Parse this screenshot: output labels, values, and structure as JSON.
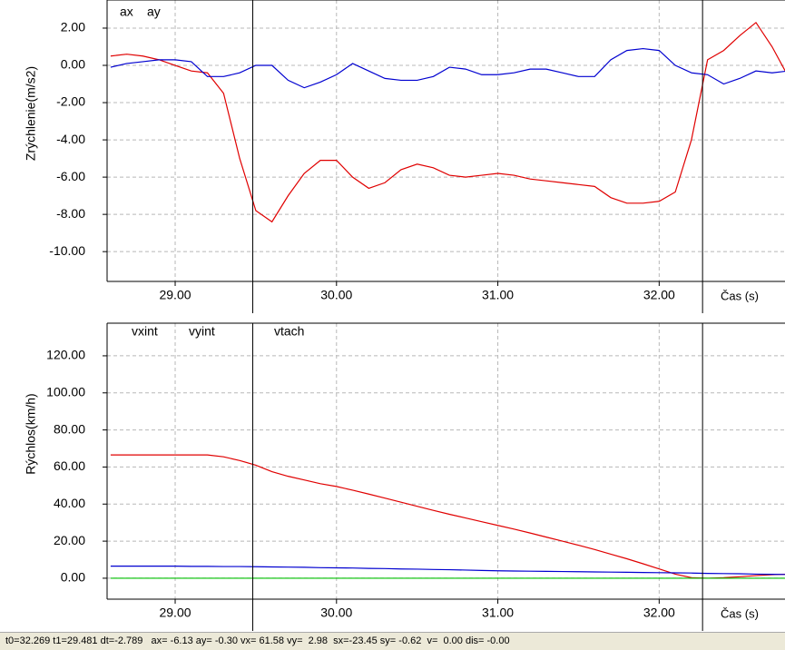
{
  "chart_data": [
    {
      "type": "line",
      "y_label": "Zrýchlenie(m/s2)",
      "x_label": "Čas (s)",
      "x": [
        28.6,
        28.7,
        28.8,
        28.9,
        29.0,
        29.1,
        29.2,
        29.3,
        29.4,
        29.5,
        29.6,
        29.7,
        29.8,
        29.9,
        30.0,
        30.1,
        30.2,
        30.3,
        30.4,
        30.5,
        30.6,
        30.7,
        30.8,
        30.9,
        31.0,
        31.1,
        31.2,
        31.3,
        31.4,
        31.5,
        31.6,
        31.7,
        31.8,
        31.9,
        32.0,
        32.1,
        32.2,
        32.3,
        32.4,
        32.5,
        32.6,
        32.7,
        32.8
      ],
      "series": [
        {
          "name": "ax",
          "color": "#e00000",
          "values": [
            0.5,
            0.6,
            0.5,
            0.3,
            0.0,
            -0.3,
            -0.4,
            -1.5,
            -5.0,
            -7.8,
            -8.4,
            -7.0,
            -5.8,
            -5.1,
            -5.1,
            -6.0,
            -6.6,
            -6.3,
            -5.6,
            -5.3,
            -5.5,
            -5.9,
            -6.0,
            -5.9,
            -5.8,
            -5.9,
            -6.1,
            -6.2,
            -6.3,
            -6.4,
            -6.5,
            -7.1,
            -7.4,
            -7.4,
            -7.3,
            -6.8,
            -4.0,
            0.3,
            0.8,
            1.6,
            2.3,
            1.0,
            -0.6
          ]
        },
        {
          "name": "ay",
          "color": "#0000d0",
          "values": [
            -0.1,
            0.1,
            0.2,
            0.3,
            0.3,
            0.2,
            -0.6,
            -0.6,
            -0.4,
            0.0,
            0.0,
            -0.8,
            -1.2,
            -0.9,
            -0.5,
            0.1,
            -0.3,
            -0.7,
            -0.8,
            -0.8,
            -0.6,
            -0.1,
            -0.2,
            -0.5,
            -0.5,
            -0.4,
            -0.2,
            -0.2,
            -0.4,
            -0.6,
            -0.6,
            0.3,
            0.8,
            0.9,
            0.8,
            0.0,
            -0.4,
            -0.5,
            -1.0,
            -0.7,
            -0.3,
            -0.4,
            -0.3
          ]
        }
      ],
      "xlim": [
        28.578,
        32.78
      ],
      "xticks": [
        {
          "value": 29,
          "label": "29.00"
        },
        {
          "value": 30,
          "label": "30.00"
        },
        {
          "value": 31,
          "label": "31.00"
        },
        {
          "value": 32,
          "label": "32.00"
        }
      ],
      "ylim": [
        -11.6,
        3.51
      ],
      "yticks": [
        {
          "value": 2,
          "label": "2.00"
        },
        {
          "value": 0,
          "label": "0.00"
        },
        {
          "value": -2,
          "label": "-2.00"
        },
        {
          "value": -4,
          "label": "-4.00"
        },
        {
          "value": -6,
          "label": "-6.00"
        },
        {
          "value": -8,
          "label": "-8.00"
        },
        {
          "value": -10,
          "label": "-10.00"
        }
      ],
      "cursors": [
        29.481,
        32.269
      ],
      "grid": true
    },
    {
      "type": "line",
      "y_label": "Rýchlos(km/h)",
      "x_label": "Čas (s)",
      "x": [
        28.6,
        28.7,
        28.8,
        28.9,
        29.0,
        29.1,
        29.2,
        29.3,
        29.4,
        29.5,
        29.6,
        29.7,
        29.8,
        29.9,
        30.0,
        30.1,
        30.2,
        30.3,
        30.4,
        30.5,
        30.6,
        30.7,
        30.8,
        30.9,
        31.0,
        31.1,
        31.2,
        31.3,
        31.4,
        31.5,
        31.6,
        31.7,
        31.8,
        31.9,
        32.0,
        32.1,
        32.2,
        32.3,
        32.4,
        32.5,
        32.6,
        32.7,
        32.8
      ],
      "series": [
        {
          "name": "vxint",
          "color": "#e00000",
          "values": [
            66.5,
            66.5,
            66.5,
            66.5,
            66.5,
            66.5,
            66.5,
            65.5,
            63.5,
            61,
            57.5,
            55,
            53,
            51,
            49.5,
            47.5,
            45.4,
            43.2,
            41.0,
            38.8,
            36.6,
            34.5,
            32.5,
            30.5,
            28.5,
            26.5,
            24.4,
            22.2,
            20.0,
            17.8,
            15.5,
            13.0,
            10.5,
            7.8,
            5.0,
            2.2,
            0.3,
            0.0,
            0.3,
            0.8,
            1.4,
            1.9,
            2.2
          ]
        },
        {
          "name": "vyint",
          "color": "#0000d0",
          "values": [
            6.5,
            6.5,
            6.5,
            6.5,
            6.5,
            6.4,
            6.4,
            6.3,
            6.3,
            6.2,
            6.1,
            6.0,
            5.9,
            5.7,
            5.6,
            5.5,
            5.3,
            5.2,
            5.0,
            4.9,
            4.7,
            4.6,
            4.4,
            4.2,
            4.0,
            3.9,
            3.8,
            3.7,
            3.6,
            3.5,
            3.4,
            3.3,
            3.2,
            3.1,
            3.0,
            2.9,
            2.8,
            2.6,
            2.5,
            2.4,
            2.2,
            2.1,
            2.0
          ]
        },
        {
          "name": "vtach",
          "color": "#00c000",
          "values": [
            0,
            0,
            0,
            0,
            0,
            0,
            0,
            0,
            0,
            0,
            0,
            0,
            0,
            0,
            0,
            0,
            0,
            0,
            0,
            0,
            0,
            0,
            0,
            0,
            0,
            0,
            0,
            0,
            0,
            0,
            0,
            0,
            0,
            0,
            0,
            0,
            0,
            0,
            0,
            0,
            0,
            0,
            0
          ]
        }
      ],
      "xlim": [
        28.578,
        32.78
      ],
      "xticks": [
        {
          "value": 29,
          "label": "29.00"
        },
        {
          "value": 30,
          "label": "30.00"
        },
        {
          "value": 31,
          "label": "31.00"
        },
        {
          "value": 32,
          "label": "32.00"
        }
      ],
      "ylim": [
        -11.3,
        137.6
      ],
      "yticks": [
        {
          "value": 120,
          "label": "120.00"
        },
        {
          "value": 100,
          "label": "100.00"
        },
        {
          "value": 80,
          "label": "80.00"
        },
        {
          "value": 60,
          "label": "60.00"
        },
        {
          "value": 40,
          "label": "40.00"
        },
        {
          "value": 20,
          "label": "20.00"
        },
        {
          "value": 0,
          "label": "0.00"
        }
      ],
      "cursors": [
        29.481,
        32.269
      ],
      "grid": true
    }
  ],
  "status_bar": "t0=32.269 t1=29.481 dt=-2.789   ax= -6.13 ay= -0.30 vx= 61.58 vy=  2.98  sx=-23.45 sy= -0.62  v=  0.00 dis= -0.00"
}
